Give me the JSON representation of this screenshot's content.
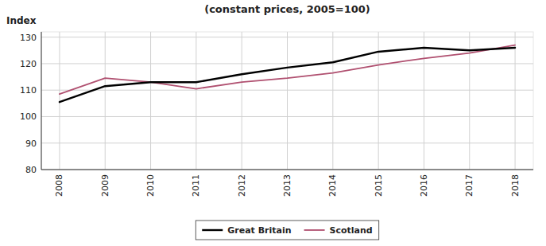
{
  "chart_data": {
    "type": "line",
    "title": "(constant prices, 2005=100)",
    "y_label": "Index",
    "x": [
      2008,
      2009,
      2010,
      2011,
      2012,
      2013,
      2014,
      2015,
      2016,
      2017,
      2018
    ],
    "series": [
      {
        "name": "Great Britain",
        "color": "#000000",
        "values": [
          105.5,
          111.5,
          113.0,
          113.0,
          116.0,
          118.5,
          120.5,
          124.5,
          126.0,
          125.0,
          126.0
        ]
      },
      {
        "name": "Scotland",
        "color": "#b05070",
        "values": [
          108.5,
          114.5,
          113.0,
          110.5,
          113.0,
          114.5,
          116.5,
          119.5,
          122.0,
          124.0,
          127.0
        ]
      }
    ],
    "xlim": [
      2007.6,
      2018.4
    ],
    "xticks": [
      2008,
      2009,
      2010,
      2011,
      2012,
      2013,
      2014,
      2015,
      2016,
      2017,
      2018
    ],
    "ylim": [
      80,
      132
    ],
    "yticks": [
      80,
      90,
      100,
      110,
      120,
      130
    ],
    "grid": true,
    "legend": "bottom"
  }
}
